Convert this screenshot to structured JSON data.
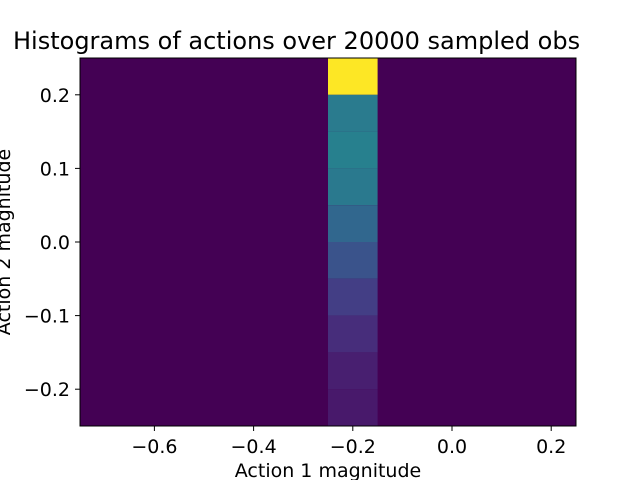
{
  "chart_data": {
    "type": "heatmap",
    "title": "Histograms of actions over 20000 sampled obs",
    "xlabel": "Action 1 magnitude",
    "ylabel": "Action 2 magnitude",
    "xlim": [
      -0.75,
      0.25
    ],
    "ylim": [
      -0.25,
      0.25
    ],
    "x_tick_labels": [
      "−0.6",
      "−0.4",
      "−0.2",
      "0.0",
      "0.2"
    ],
    "x_tick_values": [
      -0.6,
      -0.4,
      -0.2,
      0.0,
      0.2
    ],
    "y_tick_labels": [
      "−0.2",
      "−0.1",
      "0.0",
      "0.1",
      "0.2"
    ],
    "y_tick_values": [
      -0.2,
      -0.1,
      0.0,
      0.1,
      0.2
    ],
    "background_color": "#440154",
    "cells": [
      {
        "x0": -0.25,
        "x1": -0.15,
        "y0": 0.2,
        "y1": 0.25,
        "color": "#fde725"
      },
      {
        "x0": -0.25,
        "x1": -0.15,
        "y0": 0.15,
        "y1": 0.2,
        "color": "#2a7b8e"
      },
      {
        "x0": -0.25,
        "x1": -0.15,
        "y0": 0.1,
        "y1": 0.15,
        "color": "#27808e"
      },
      {
        "x0": -0.25,
        "x1": -0.15,
        "y0": 0.05,
        "y1": 0.1,
        "color": "#2a798e"
      },
      {
        "x0": -0.25,
        "x1": -0.15,
        "y0": 0.0,
        "y1": 0.05,
        "color": "#31678e"
      },
      {
        "x0": -0.25,
        "x1": -0.15,
        "y0": -0.05,
        "y1": 0.0,
        "color": "#3a538b"
      },
      {
        "x0": -0.25,
        "x1": -0.15,
        "y0": -0.1,
        "y1": -0.05,
        "color": "#433e85"
      },
      {
        "x0": -0.25,
        "x1": -0.15,
        "y0": -0.15,
        "y1": -0.1,
        "color": "#472d7b"
      },
      {
        "x0": -0.25,
        "x1": -0.15,
        "y0": -0.2,
        "y1": -0.15,
        "color": "#481f70"
      },
      {
        "x0": -0.25,
        "x1": -0.15,
        "y0": -0.25,
        "y1": -0.2,
        "color": "#48196b"
      }
    ]
  }
}
